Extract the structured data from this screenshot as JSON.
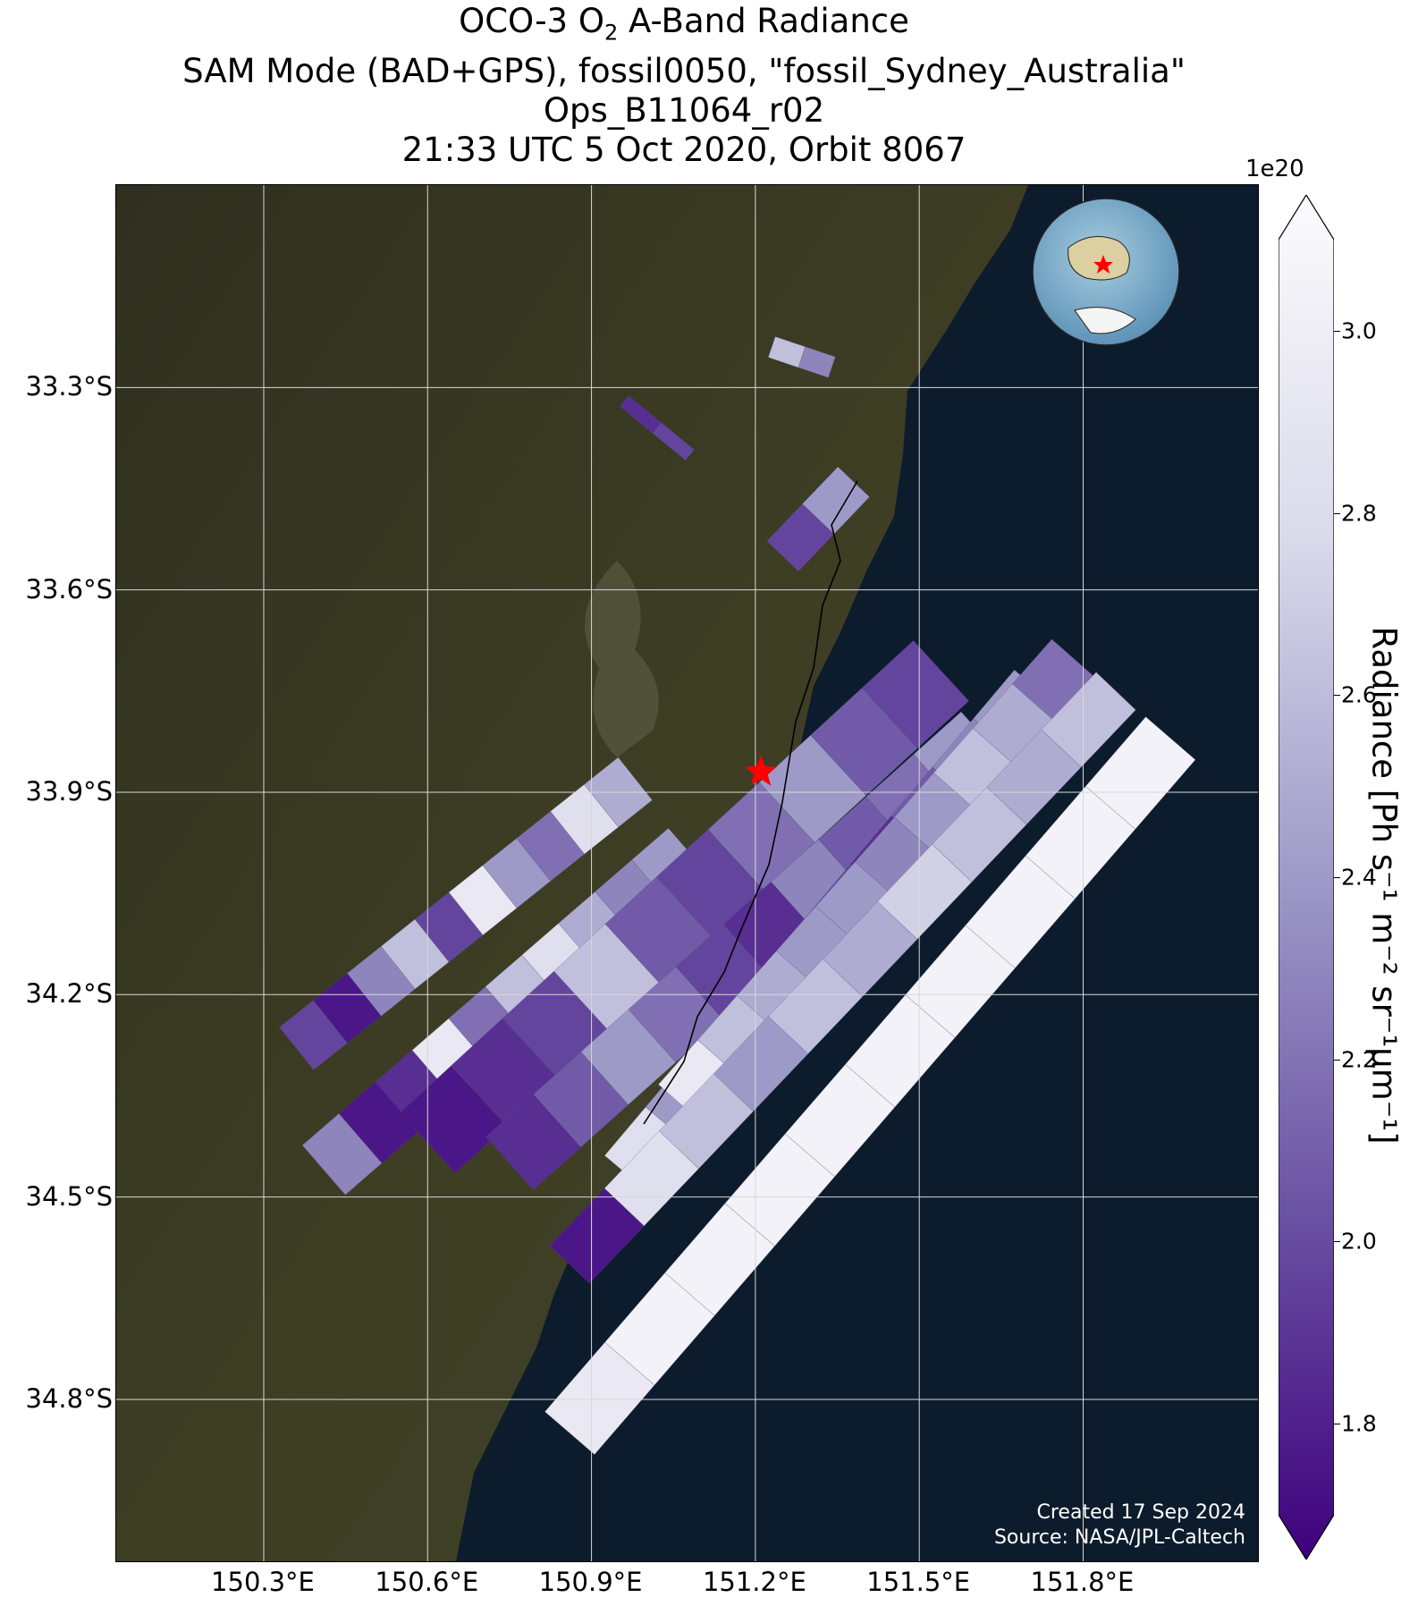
{
  "title": {
    "line1_prefix": "OCO-3 O",
    "line1_sub": "2",
    "line1_suffix": " A-Band Radiance",
    "line2": "SAM Mode (BAD+GPS), fossil0050, \"fossil_Sydney_Australia\"",
    "line3": "Ops_B11064_r02",
    "line4": "21:33 UTC 5 Oct 2020, Orbit 8067"
  },
  "map": {
    "lon_range": [
      150.03,
      152.12
    ],
    "lat_range": [
      -35.04,
      -33.0
    ],
    "lat_ticks": [
      "33.3°S",
      "33.6°S",
      "33.9°S",
      "34.2°S",
      "34.5°S",
      "34.8°S"
    ],
    "lon_ticks": [
      "150.3°E",
      "150.6°E",
      "150.9°E",
      "151.2°E",
      "151.5°E",
      "151.8°E"
    ],
    "lat_values": [
      -33.3,
      -33.6,
      -33.9,
      -34.2,
      -34.5,
      -34.8
    ],
    "lon_values": [
      150.3,
      150.6,
      150.9,
      151.2,
      151.5,
      151.8
    ],
    "target": {
      "lon": 151.21,
      "lat": -33.87,
      "marker": "red-star"
    },
    "inset": "globe-with-australia-and-red-star",
    "credit_line1": "Created 17 Sep 2024",
    "credit_line2": "Source: NASA/JPL-Caltech",
    "colors": {
      "land": "#3a3a22",
      "ocean": "#0c1c2c",
      "grid": "#d8d8d8",
      "star": "#ff0000"
    }
  },
  "chart_data": {
    "type": "heatmap",
    "variable": "Radiance",
    "colormap": "Purples",
    "vmin": 1.7,
    "vmax": 3.1,
    "extend": "both",
    "multiplier": "1e20",
    "swaths": [
      {
        "from": [
          150.36,
          -34.28
        ],
        "to": [
          150.98,
          -33.88
        ],
        "width_deg": 0.1,
        "values": [
          2.0,
          1.8,
          2.3,
          2.6,
          2.0,
          2.9,
          2.4,
          2.2,
          2.8,
          2.5
        ]
      },
      {
        "from": [
          150.41,
          -34.46
        ],
        "to": [
          151.08,
          -33.99
        ],
        "width_deg": 0.12,
        "values": [
          2.3,
          1.8,
          1.9,
          2.9,
          2.2,
          2.6,
          2.8,
          2.5,
          2.3,
          2.4
        ]
      },
      {
        "from": [
          150.6,
          -34.42
        ],
        "to": [
          151.54,
          -33.72
        ],
        "width_deg": 0.15,
        "values": [
          1.8,
          1.9,
          2.0,
          2.6,
          2.1,
          2.0,
          2.2,
          2.4,
          2.1,
          2.0
        ]
      },
      {
        "from": [
          150.75,
          -34.45
        ],
        "to": [
          151.62,
          -33.82
        ],
        "width_deg": 0.13,
        "values": [
          1.9,
          2.1,
          2.4,
          2.2,
          2.0,
          1.9,
          2.3,
          2.1,
          2.2,
          2.4
        ]
      },
      {
        "from": [
          150.97,
          -34.47
        ],
        "to": [
          151.72,
          -33.75
        ],
        "width_deg": 0.12,
        "values": [
          2.8,
          2.4,
          2.5,
          2.3,
          2.2,
          2.0,
          1.9,
          2.1,
          2.3,
          2.4
        ]
      },
      {
        "from": [
          151.06,
          -34.36
        ],
        "to": [
          151.78,
          -33.7
        ],
        "width_deg": 0.1,
        "values": [
          2.9,
          2.6,
          2.5,
          2.4,
          2.4,
          2.3,
          2.4,
          2.6,
          2.5,
          2.2
        ]
      },
      {
        "from": [
          150.86,
          -34.6
        ],
        "to": [
          151.86,
          -33.75
        ],
        "width_deg": 0.1,
        "values": [
          1.8,
          2.8,
          2.6,
          2.4,
          2.6,
          2.5,
          2.7,
          2.6,
          2.5,
          2.6
        ]
      },
      {
        "from": [
          150.86,
          -34.85
        ],
        "to": [
          151.96,
          -33.82
        ],
        "width_deg": 0.12,
        "values": [
          2.9,
          3.0,
          3.0,
          3.0,
          3.0,
          3.0,
          3.0,
          3.0,
          3.0,
          3.0
        ]
      },
      {
        "from": [
          151.25,
          -33.55
        ],
        "to": [
          151.38,
          -33.44
        ],
        "width_deg": 0.08,
        "values": [
          2.0,
          2.4
        ]
      },
      {
        "from": [
          151.23,
          -33.24
        ],
        "to": [
          151.34,
          -33.27
        ],
        "width_deg": 0.04,
        "values": [
          2.6,
          2.3
        ]
      },
      {
        "from": [
          150.96,
          -33.32
        ],
        "to": [
          151.08,
          -33.4
        ],
        "width_deg": 0.025,
        "values": [
          1.9,
          2.0
        ]
      }
    ]
  },
  "colorbar": {
    "ticks": [
      "3.0",
      "2.8",
      "2.6",
      "2.4",
      "2.2",
      "2.0",
      "1.8"
    ],
    "tick_values": [
      3.0,
      2.8,
      2.6,
      2.4,
      2.2,
      2.0,
      1.8
    ],
    "label": "Radiance [Ph s⁻¹ m⁻² sr⁻¹µm⁻¹]",
    "multiplier": "1e20"
  }
}
